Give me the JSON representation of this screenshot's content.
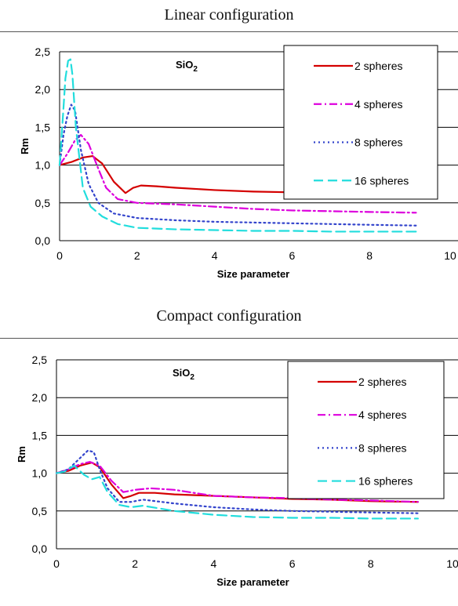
{
  "panels": [
    {
      "title": "Linear configuration"
    },
    {
      "title": "Compact configuration"
    }
  ],
  "chart_data": [
    {
      "type": "line",
      "title": "Linear configuration",
      "annotation": "SiO2",
      "xlabel": "Size parameter",
      "ylabel": "Rm",
      "xlim": [
        0,
        10
      ],
      "ylim": [
        0,
        2.5
      ],
      "xticks": [
        "0",
        "2",
        "4",
        "6",
        "8",
        "10"
      ],
      "yticks": [
        "0,0",
        "0,5",
        "1,0",
        "1,5",
        "2,0",
        "2,5"
      ],
      "grid": "horizontal",
      "legend_position": "top-right",
      "series": [
        {
          "name": "2 spheres",
          "color": "#d40000",
          "dash": "solid",
          "x": [
            0,
            0.3,
            0.6,
            0.85,
            1.1,
            1.4,
            1.7,
            1.9,
            2.1,
            2.5,
            3,
            4,
            5,
            6,
            7,
            8,
            9.2
          ],
          "y": [
            1.0,
            1.04,
            1.1,
            1.12,
            1.02,
            0.78,
            0.63,
            0.7,
            0.73,
            0.72,
            0.7,
            0.67,
            0.65,
            0.64,
            0.63,
            0.62,
            0.6
          ]
        },
        {
          "name": "4 spheres",
          "color": "#dd00dd",
          "dash": "dashdot",
          "x": [
            0,
            0.2,
            0.4,
            0.55,
            0.75,
            1.0,
            1.2,
            1.5,
            2.0,
            3,
            4,
            5,
            6,
            7,
            8,
            9.2
          ],
          "y": [
            1.0,
            1.15,
            1.33,
            1.4,
            1.28,
            0.95,
            0.7,
            0.55,
            0.5,
            0.48,
            0.45,
            0.42,
            0.4,
            0.39,
            0.38,
            0.37
          ]
        },
        {
          "name": "8 spheres",
          "color": "#3344cc",
          "dash": "dot",
          "x": [
            0,
            0.1,
            0.2,
            0.3,
            0.4,
            0.55,
            0.75,
            1.0,
            1.4,
            2.0,
            3,
            4,
            5,
            6,
            7,
            8,
            9.2
          ],
          "y": [
            1.0,
            1.4,
            1.65,
            1.8,
            1.72,
            1.2,
            0.75,
            0.5,
            0.36,
            0.3,
            0.27,
            0.25,
            0.24,
            0.23,
            0.22,
            0.21,
            0.2
          ]
        },
        {
          "name": "16 spheres",
          "color": "#22dddd",
          "dash": "dash",
          "x": [
            0,
            0.08,
            0.15,
            0.22,
            0.28,
            0.33,
            0.42,
            0.6,
            0.8,
            1.1,
            1.5,
            2.0,
            3,
            4,
            5,
            6,
            7,
            8,
            9.2
          ],
          "y": [
            1.0,
            1.6,
            2.15,
            2.38,
            2.4,
            2.2,
            1.5,
            0.7,
            0.45,
            0.32,
            0.22,
            0.17,
            0.15,
            0.14,
            0.13,
            0.13,
            0.12,
            0.12,
            0.12
          ]
        }
      ]
    },
    {
      "type": "line",
      "title": "Compact configuration",
      "annotation": "SiO2",
      "xlabel": "Size parameter",
      "ylabel": "Rm",
      "xlim": [
        0,
        10
      ],
      "ylim": [
        0,
        2.5
      ],
      "xticks": [
        "0",
        "2",
        "4",
        "6",
        "8",
        "10"
      ],
      "yticks": [
        "0,0",
        "0,5",
        "1,0",
        "1,5",
        "2,0",
        "2,5"
      ],
      "grid": "horizontal",
      "legend_position": "top-right",
      "series": [
        {
          "name": "2 spheres",
          "color": "#d40000",
          "dash": "solid",
          "x": [
            0,
            0.3,
            0.6,
            0.9,
            1.1,
            1.4,
            1.7,
            1.9,
            2.1,
            2.5,
            3,
            4,
            5,
            6,
            7,
            8,
            9.2
          ],
          "y": [
            1.0,
            1.03,
            1.1,
            1.14,
            1.08,
            0.85,
            0.67,
            0.7,
            0.74,
            0.74,
            0.72,
            0.7,
            0.68,
            0.66,
            0.65,
            0.63,
            0.62
          ]
        },
        {
          "name": "4 spheres",
          "color": "#dd00dd",
          "dash": "dashdot",
          "x": [
            0,
            0.3,
            0.6,
            0.85,
            1.1,
            1.4,
            1.7,
            2.0,
            2.4,
            3,
            4,
            5,
            6,
            7,
            8,
            9.2
          ],
          "y": [
            1.0,
            1.05,
            1.12,
            1.15,
            1.1,
            0.9,
            0.75,
            0.78,
            0.8,
            0.78,
            0.7,
            0.68,
            0.67,
            0.65,
            0.64,
            0.62
          ]
        },
        {
          "name": "8 spheres",
          "color": "#3344cc",
          "dash": "dot",
          "x": [
            0,
            0.3,
            0.6,
            0.8,
            0.95,
            1.1,
            1.3,
            1.6,
            1.9,
            2.2,
            3,
            4,
            5,
            6,
            7,
            8,
            9.2
          ],
          "y": [
            1.0,
            1.05,
            1.2,
            1.3,
            1.28,
            1.05,
            0.8,
            0.62,
            0.62,
            0.65,
            0.6,
            0.55,
            0.52,
            0.5,
            0.49,
            0.48,
            0.47
          ]
        },
        {
          "name": "16 spheres",
          "color": "#22dddd",
          "dash": "dash",
          "x": [
            0,
            0.2,
            0.45,
            0.7,
            0.9,
            1.1,
            1.3,
            1.6,
            1.9,
            2.2,
            3,
            4,
            5,
            6,
            7,
            8,
            9.2
          ],
          "y": [
            1.0,
            1.02,
            1.1,
            0.98,
            0.92,
            0.95,
            0.75,
            0.58,
            0.55,
            0.57,
            0.5,
            0.45,
            0.42,
            0.41,
            0.41,
            0.4,
            0.4
          ]
        }
      ]
    }
  ]
}
